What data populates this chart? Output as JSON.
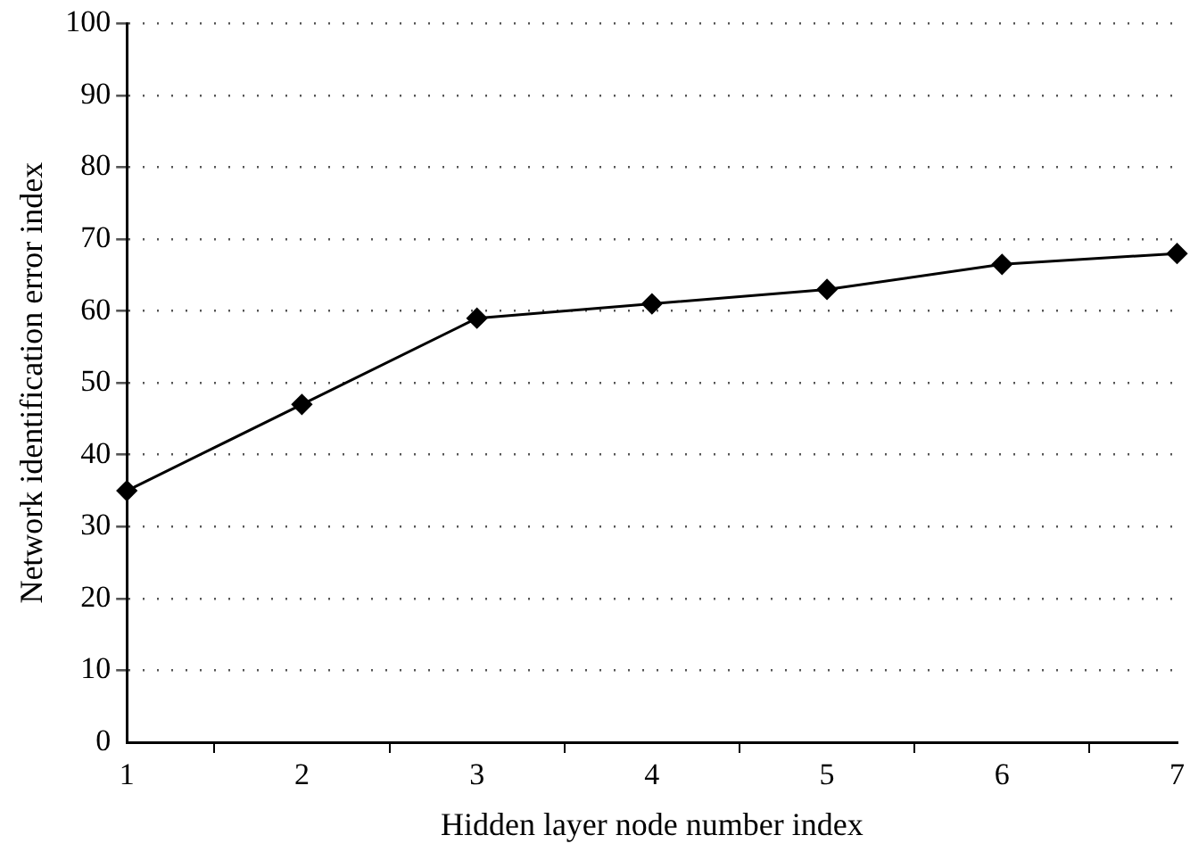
{
  "chart_data": {
    "type": "line",
    "xlabel": "Hidden layer node number index",
    "ylabel": "Network identification error index",
    "categories": [
      "1",
      "2",
      "3",
      "4",
      "5",
      "6",
      "7"
    ],
    "series": [
      {
        "color": "#000000",
        "values": [
          35,
          47,
          59,
          61,
          63,
          66.5,
          68
        ]
      }
    ],
    "ylim": [
      0,
      100
    ],
    "yticks": [
      0,
      10,
      20,
      30,
      40,
      50,
      60,
      70,
      80,
      90,
      100
    ],
    "grid": "y",
    "legend": false,
    "marker": "diamond",
    "line_style": "solid"
  }
}
